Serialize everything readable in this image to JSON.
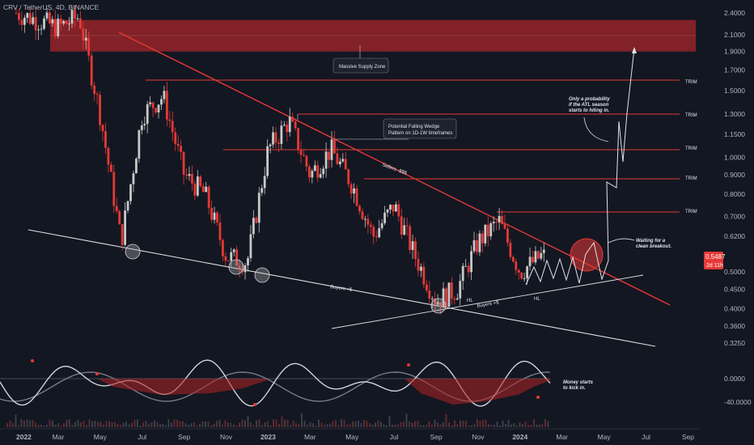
{
  "header": {
    "title": "CRV / TetherUS, 4D, BINANCE"
  },
  "colors": {
    "background": "#131722",
    "bear_candle": "#e53935",
    "bull_candle": "#c8c8c8",
    "resistance_line": "#e53935",
    "support_line": "#e0e0e0",
    "price_badge": "#e53935",
    "supply_zone": "#a8262b"
  },
  "price_axis": {
    "labels": [
      "2.4000",
      "2.1000",
      "1.9000",
      "1.7000",
      "1.5000",
      "1.3000",
      "1.1500",
      "1.0000",
      "0.9000",
      "0.8000",
      "0.7000",
      "0.6200",
      "0.5000",
      "0.4500",
      "0.4000",
      "0.3600",
      "0.3250"
    ],
    "current_price": "0.5487",
    "countdown": "2d 11h"
  },
  "oscillator_axis": {
    "labels": [
      "0.0000",
      "-40.0000"
    ]
  },
  "time_axis": {
    "labels": [
      "2022",
      "Mar",
      "May",
      "Jul",
      "Sep",
      "Nov",
      "2023",
      "Mar",
      "May",
      "Jul",
      "Sep",
      "Nov",
      "2024",
      "Mar",
      "May",
      "Jul",
      "Sep"
    ]
  },
  "chart_data": {
    "type": "candlestick",
    "title": "CRV / TetherUS, 4D, BINANCE",
    "y_scale": "log",
    "ylim": [
      0.3,
      2.6
    ],
    "x_range": [
      "2022-01",
      "2024-09"
    ],
    "close_approx": [
      {
        "date": "2022-01",
        "close": 2.4
      },
      {
        "date": "2022-02",
        "close": 2.3
      },
      {
        "date": "2022-03",
        "close": 2.2
      },
      {
        "date": "2022-04",
        "close": 2.35
      },
      {
        "date": "2022-05",
        "close": 1.3
      },
      {
        "date": "2022-06",
        "close": 0.6
      },
      {
        "date": "2022-07",
        "close": 1.3
      },
      {
        "date": "2022-08",
        "close": 1.45
      },
      {
        "date": "2022-09",
        "close": 0.9
      },
      {
        "date": "2022-10",
        "close": 0.8
      },
      {
        "date": "2022-11",
        "close": 0.55
      },
      {
        "date": "2022-12",
        "close": 0.53
      },
      {
        "date": "2023-01",
        "close": 1.05
      },
      {
        "date": "2023-02",
        "close": 1.25
      },
      {
        "date": "2023-03",
        "close": 0.9
      },
      {
        "date": "2023-04",
        "close": 1.05
      },
      {
        "date": "2023-05",
        "close": 0.85
      },
      {
        "date": "2023-06",
        "close": 0.62
      },
      {
        "date": "2023-07",
        "close": 0.75
      },
      {
        "date": "2023-08",
        "close": 0.55
      },
      {
        "date": "2023-09",
        "close": 0.42
      },
      {
        "date": "2023-10",
        "close": 0.45
      },
      {
        "date": "2023-11",
        "close": 0.6
      },
      {
        "date": "2023-12",
        "close": 0.68
      },
      {
        "date": "2024-01",
        "close": 0.5
      },
      {
        "date": "2024-02",
        "close": 0.55
      }
    ],
    "current_price": 0.5487,
    "horizontal_levels": [
      {
        "price": 1.6,
        "label": "TRIM"
      },
      {
        "price": 1.3,
        "label": "TRIM"
      },
      {
        "price": 1.05,
        "label": "TRIM"
      },
      {
        "price": 0.88,
        "label": "TRIM"
      },
      {
        "price": 0.72,
        "label": "TRIM"
      }
    ],
    "supply_zone": {
      "from": 1.9,
      "to": 2.3,
      "label": "Massive Supply Zone"
    },
    "annotations": [
      {
        "text": "Potential Falling Wedge Pattern on 1D-1W timeframes"
      },
      {
        "text": "Sellers -$$$"
      },
      {
        "text": "Buyers +$"
      },
      {
        "text": "Buyers +$"
      },
      {
        "text": "HL"
      },
      {
        "text": "HL"
      },
      {
        "text": "Only a probability if the ATL season starts to hiting in."
      },
      {
        "text": "Waiting for a clean breakout."
      },
      {
        "text": "Money starts to kick in."
      }
    ]
  },
  "labels": {
    "trim": "TRIM",
    "supply_zone": "Massive Supply Zone",
    "wedge_line1": "Potential Falling Wedge",
    "wedge_line2": "Pattern on 1D-1W timeframes",
    "sellers": "Sellers -$$$",
    "buyers": "Buyers +$",
    "hl": "HL",
    "prob_line1": "Only a probability",
    "prob_line2": "if the ATL season",
    "prob_line3": "starts to hiting in.",
    "wait_line1": "Waiting for a",
    "wait_line2": "clean breakout.",
    "money_line1": "Money starts",
    "money_line2": "to kick in."
  }
}
